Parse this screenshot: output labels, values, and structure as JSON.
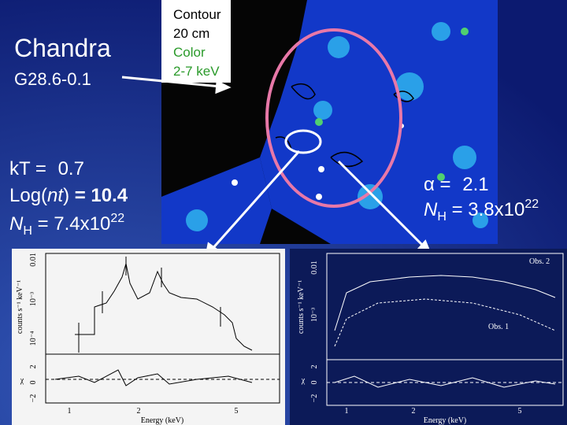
{
  "slide": {
    "title": "Chandra",
    "subtitle": "G28.6-0.1",
    "image_legend": {
      "contour": "Contour",
      "contour_band": "20 cm",
      "color": "Color",
      "color_band": "2-7 keV"
    },
    "thermal_fit": {
      "kt": "kT = ",
      "kt_value": "0.7",
      "lognt_prefix": "Log(",
      "lognt_var": "nt",
      "lognt_suffix": ")",
      "lognt_value": " = 10.4",
      "nh": "N",
      "nh_sub": "H",
      "nh_eq": " = 7.4x10",
      "nh_exp": "22"
    },
    "powerlaw_fit": {
      "alpha": "α = ",
      "alpha_value": "2.1",
      "nh": "N",
      "nh_sub": "H",
      "nh_eq": " = 3.8x10",
      "nh_exp": "22"
    },
    "left_spectrum": {
      "y_label": "counts s⁻¹ keV⁻¹",
      "y_ticks": [
        "0.01",
        "10⁻³",
        "10⁻⁴"
      ],
      "resid_label": "χ",
      "resid_ticks": [
        "2",
        "0",
        "−2"
      ],
      "x_ticks": [
        "1",
        "2",
        "5"
      ],
      "x_label": "Energy (keV)"
    },
    "right_spectrum": {
      "y_label": "counts s⁻¹ keV⁻¹",
      "y_ticks": [
        "0.01",
        "10⁻³"
      ],
      "resid_label": "χ",
      "resid_ticks": [
        "2",
        "0",
        "−2"
      ],
      "x_ticks": [
        "1",
        "2",
        "5"
      ],
      "x_label": "Energy (keV)",
      "obs2": "Obs. 2",
      "obs1": "Obs. 1"
    }
  }
}
